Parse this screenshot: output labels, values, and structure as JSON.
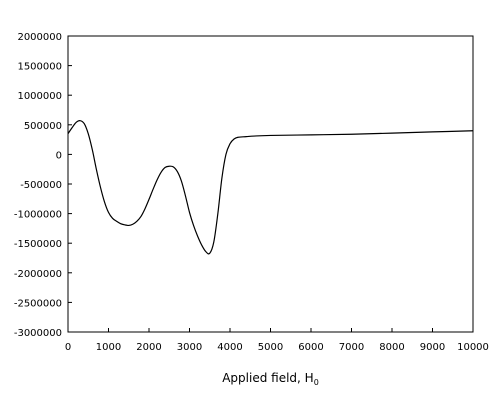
{
  "chart_data": {
    "type": "line",
    "title": "",
    "xlabel": "Applied field, H",
    "xlabel_subscript": "0",
    "ylabel": "",
    "xlim": [
      0,
      10000
    ],
    "ylim": [
      -3000000,
      2000000
    ],
    "xticks": [
      0,
      1000,
      2000,
      3000,
      4000,
      5000,
      6000,
      7000,
      8000,
      9000,
      10000
    ],
    "yticks": [
      -3000000,
      -2500000,
      -2000000,
      -1500000,
      -1000000,
      -500000,
      0,
      500000,
      1000000,
      1500000,
      2000000
    ],
    "grid": false,
    "line_color": "#000000",
    "series": [
      {
        "x": [
          0,
          100,
          200,
          300,
          400,
          500,
          600,
          700,
          800,
          900,
          1000,
          1100,
          1200,
          1300,
          1400,
          1500,
          1600,
          1700,
          1800,
          1900,
          2000,
          2100,
          2200,
          2300,
          2400,
          2500,
          2600,
          2700,
          2800,
          2900,
          3000,
          3100,
          3200,
          3300,
          3400,
          3500,
          3600,
          3700,
          3800,
          3900,
          4000,
          4100,
          4200,
          4400,
          4600,
          5000,
          6000,
          7000,
          8000,
          9000,
          10000
        ],
        "y": [
          350000,
          450000,
          540000,
          570000,
          520000,
          350000,
          80000,
          -250000,
          -550000,
          -800000,
          -980000,
          -1080000,
          -1130000,
          -1170000,
          -1190000,
          -1200000,
          -1180000,
          -1130000,
          -1050000,
          -920000,
          -760000,
          -590000,
          -430000,
          -300000,
          -220000,
          -200000,
          -210000,
          -290000,
          -450000,
          -700000,
          -980000,
          -1200000,
          -1380000,
          -1530000,
          -1640000,
          -1670000,
          -1480000,
          -1000000,
          -400000,
          0,
          180000,
          260000,
          290000,
          300000,
          310000,
          320000,
          330000,
          340000,
          360000,
          380000,
          400000
        ]
      }
    ]
  }
}
